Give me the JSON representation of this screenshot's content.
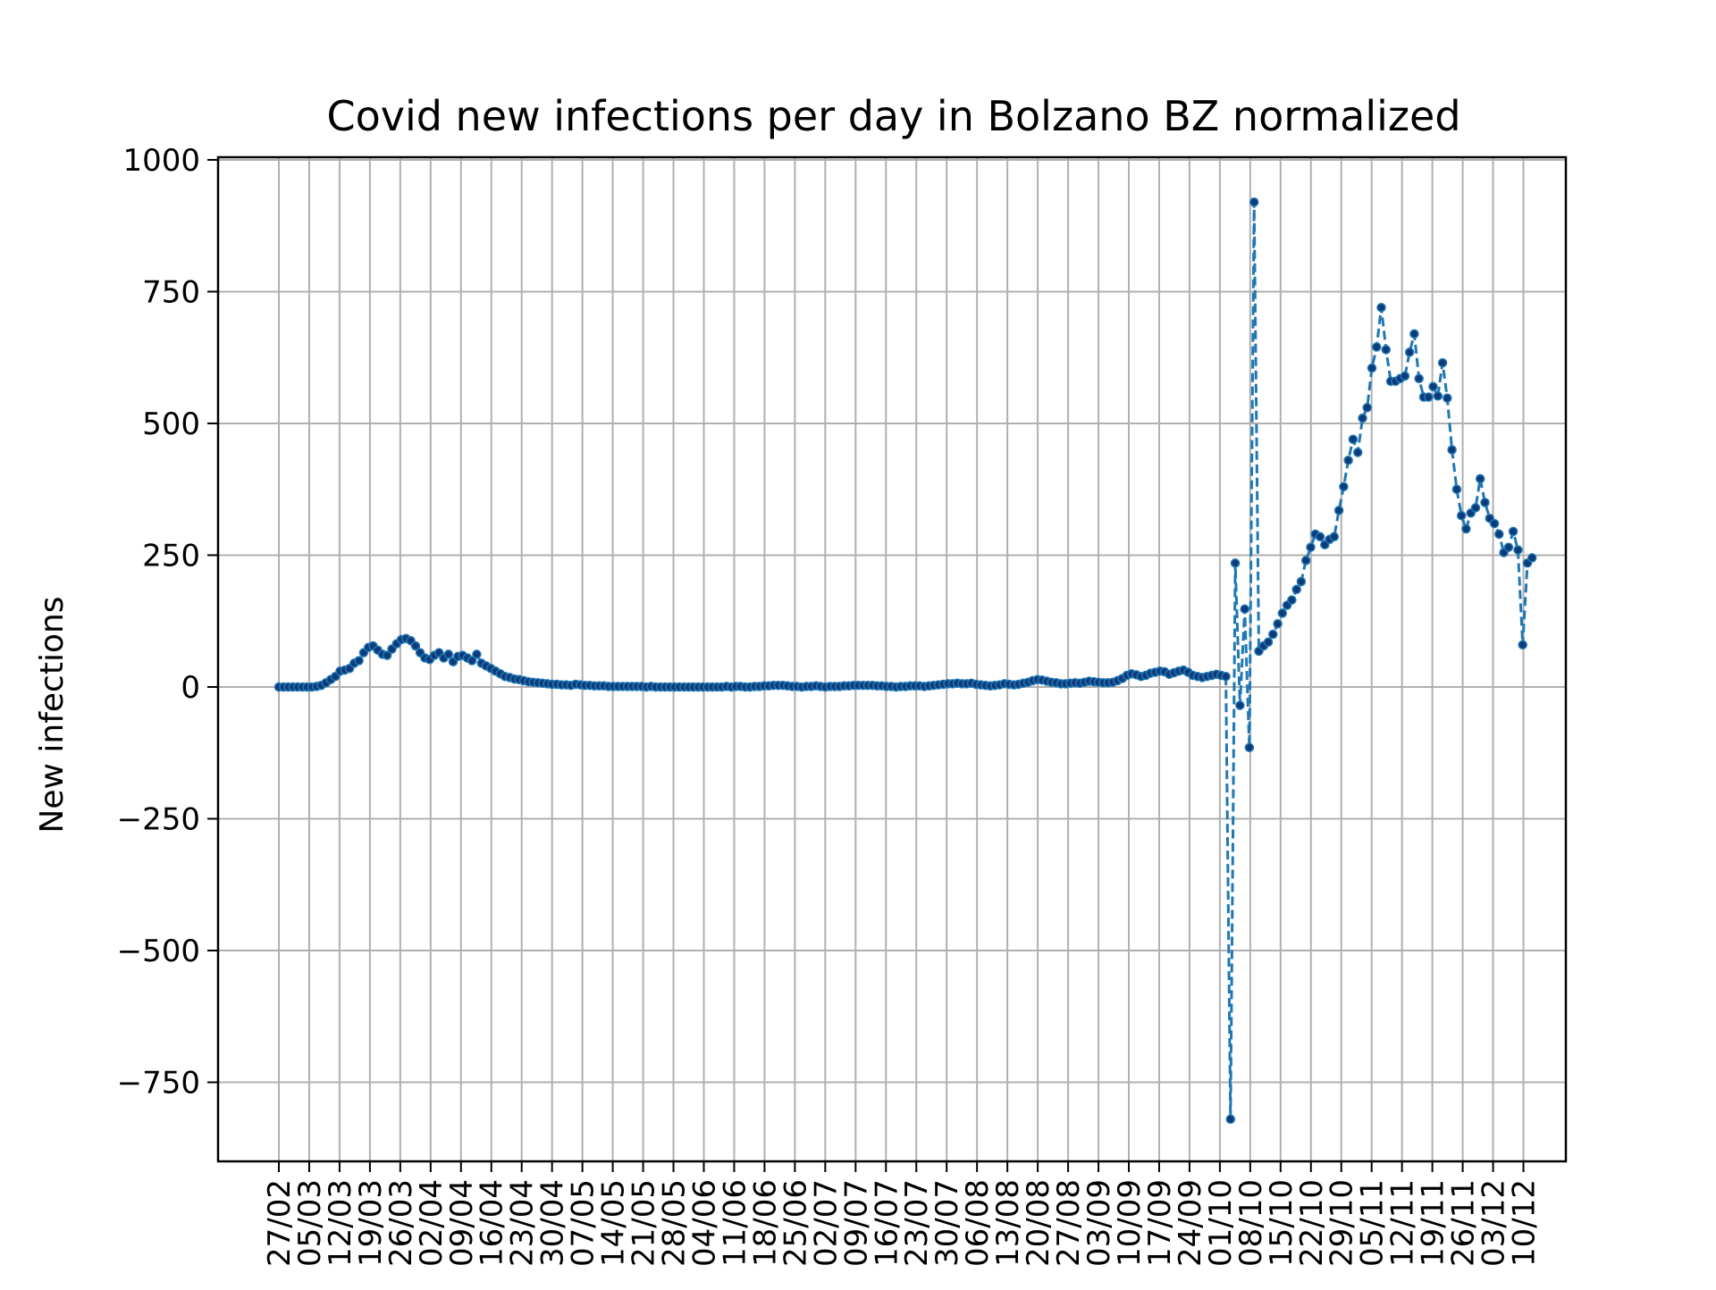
{
  "chart_data": {
    "type": "line",
    "title": "Covid new infections per day in Bolzano BZ normalized",
    "xlabel": "",
    "ylabel": "New infections",
    "ylim": [
      -900,
      1005
    ],
    "yticks": [
      -750,
      -500,
      -250,
      0,
      250,
      500,
      750,
      1000
    ],
    "ytick_labels": [
      "−750",
      "−500",
      "−250",
      "0",
      "250",
      "500",
      "750",
      "1000"
    ],
    "grid": true,
    "line_style": "dashed",
    "marker": "dot",
    "colors": {
      "line": "#1f77b4",
      "marker": "#0d3b7a",
      "grid": "#b0b0b0"
    },
    "x_start": "27/02",
    "x_end": "12/12",
    "xticks": [
      "27/02",
      "05/03",
      "12/03",
      "19/03",
      "26/03",
      "02/04",
      "09/04",
      "16/04",
      "23/04",
      "30/04",
      "07/05",
      "14/05",
      "21/05",
      "28/05",
      "04/06",
      "11/06",
      "18/06",
      "25/06",
      "02/07",
      "09/07",
      "16/07",
      "23/07",
      "30/07",
      "06/08",
      "13/08",
      "20/08",
      "27/08",
      "03/09",
      "10/09",
      "17/09",
      "24/09",
      "01/10",
      "08/10",
      "15/10",
      "22/10",
      "29/10",
      "05/11",
      "12/11",
      "19/11",
      "26/11",
      "03/12",
      "10/12"
    ],
    "series": [
      {
        "values": [
          0,
          0,
          0,
          0,
          0,
          0,
          0,
          0,
          1,
          3,
          8,
          14,
          20,
          30,
          32,
          35,
          45,
          50,
          65,
          75,
          78,
          70,
          62,
          60,
          72,
          82,
          90,
          92,
          88,
          78,
          65,
          55,
          52,
          60,
          65,
          55,
          62,
          48,
          58,
          60,
          55,
          50,
          62,
          45,
          40,
          35,
          30,
          25,
          20,
          18,
          15,
          14,
          12,
          10,
          9,
          8,
          7,
          6,
          5,
          5,
          4,
          4,
          3,
          5,
          4,
          3,
          3,
          2,
          2,
          2,
          1,
          1,
          1,
          1,
          1,
          1,
          1,
          1,
          0,
          1,
          0,
          0,
          0,
          0,
          0,
          0,
          0,
          0,
          0,
          0,
          0,
          0,
          0,
          0,
          0,
          1,
          0,
          1,
          1,
          0,
          0,
          1,
          1,
          2,
          2,
          3,
          3,
          3,
          2,
          1,
          1,
          0,
          1,
          1,
          2,
          1,
          0,
          1,
          1,
          1,
          2,
          2,
          3,
          3,
          3,
          3,
          3,
          2,
          2,
          1,
          1,
          0,
          1,
          1,
          2,
          2,
          2,
          1,
          2,
          3,
          4,
          5,
          6,
          6,
          7,
          6,
          6,
          7,
          5,
          4,
          3,
          2,
          3,
          4,
          6,
          5,
          4,
          5,
          7,
          9,
          12,
          14,
          13,
          11,
          9,
          8,
          6,
          6,
          7,
          8,
          7,
          9,
          11,
          10,
          9,
          8,
          8,
          9,
          12,
          16,
          22,
          25,
          23,
          20,
          22,
          26,
          28,
          30,
          29,
          24,
          27,
          30,
          32,
          28,
          22,
          20,
          18,
          20,
          22,
          24,
          22,
          20,
          -820,
          235,
          -35,
          148,
          -115,
          920,
          68,
          78,
          85,
          100,
          120,
          140,
          155,
          165,
          185,
          200,
          240,
          265,
          290,
          285,
          270,
          280,
          285,
          335,
          380,
          430,
          470,
          445,
          510,
          530,
          605,
          645,
          720,
          640,
          580,
          580,
          585,
          590,
          635,
          670,
          585,
          550,
          550,
          570,
          552,
          615,
          548,
          450,
          375,
          325,
          300,
          330,
          340,
          395,
          350,
          320,
          310,
          290,
          255,
          265,
          295,
          260,
          80,
          235,
          245
        ]
      }
    ]
  }
}
